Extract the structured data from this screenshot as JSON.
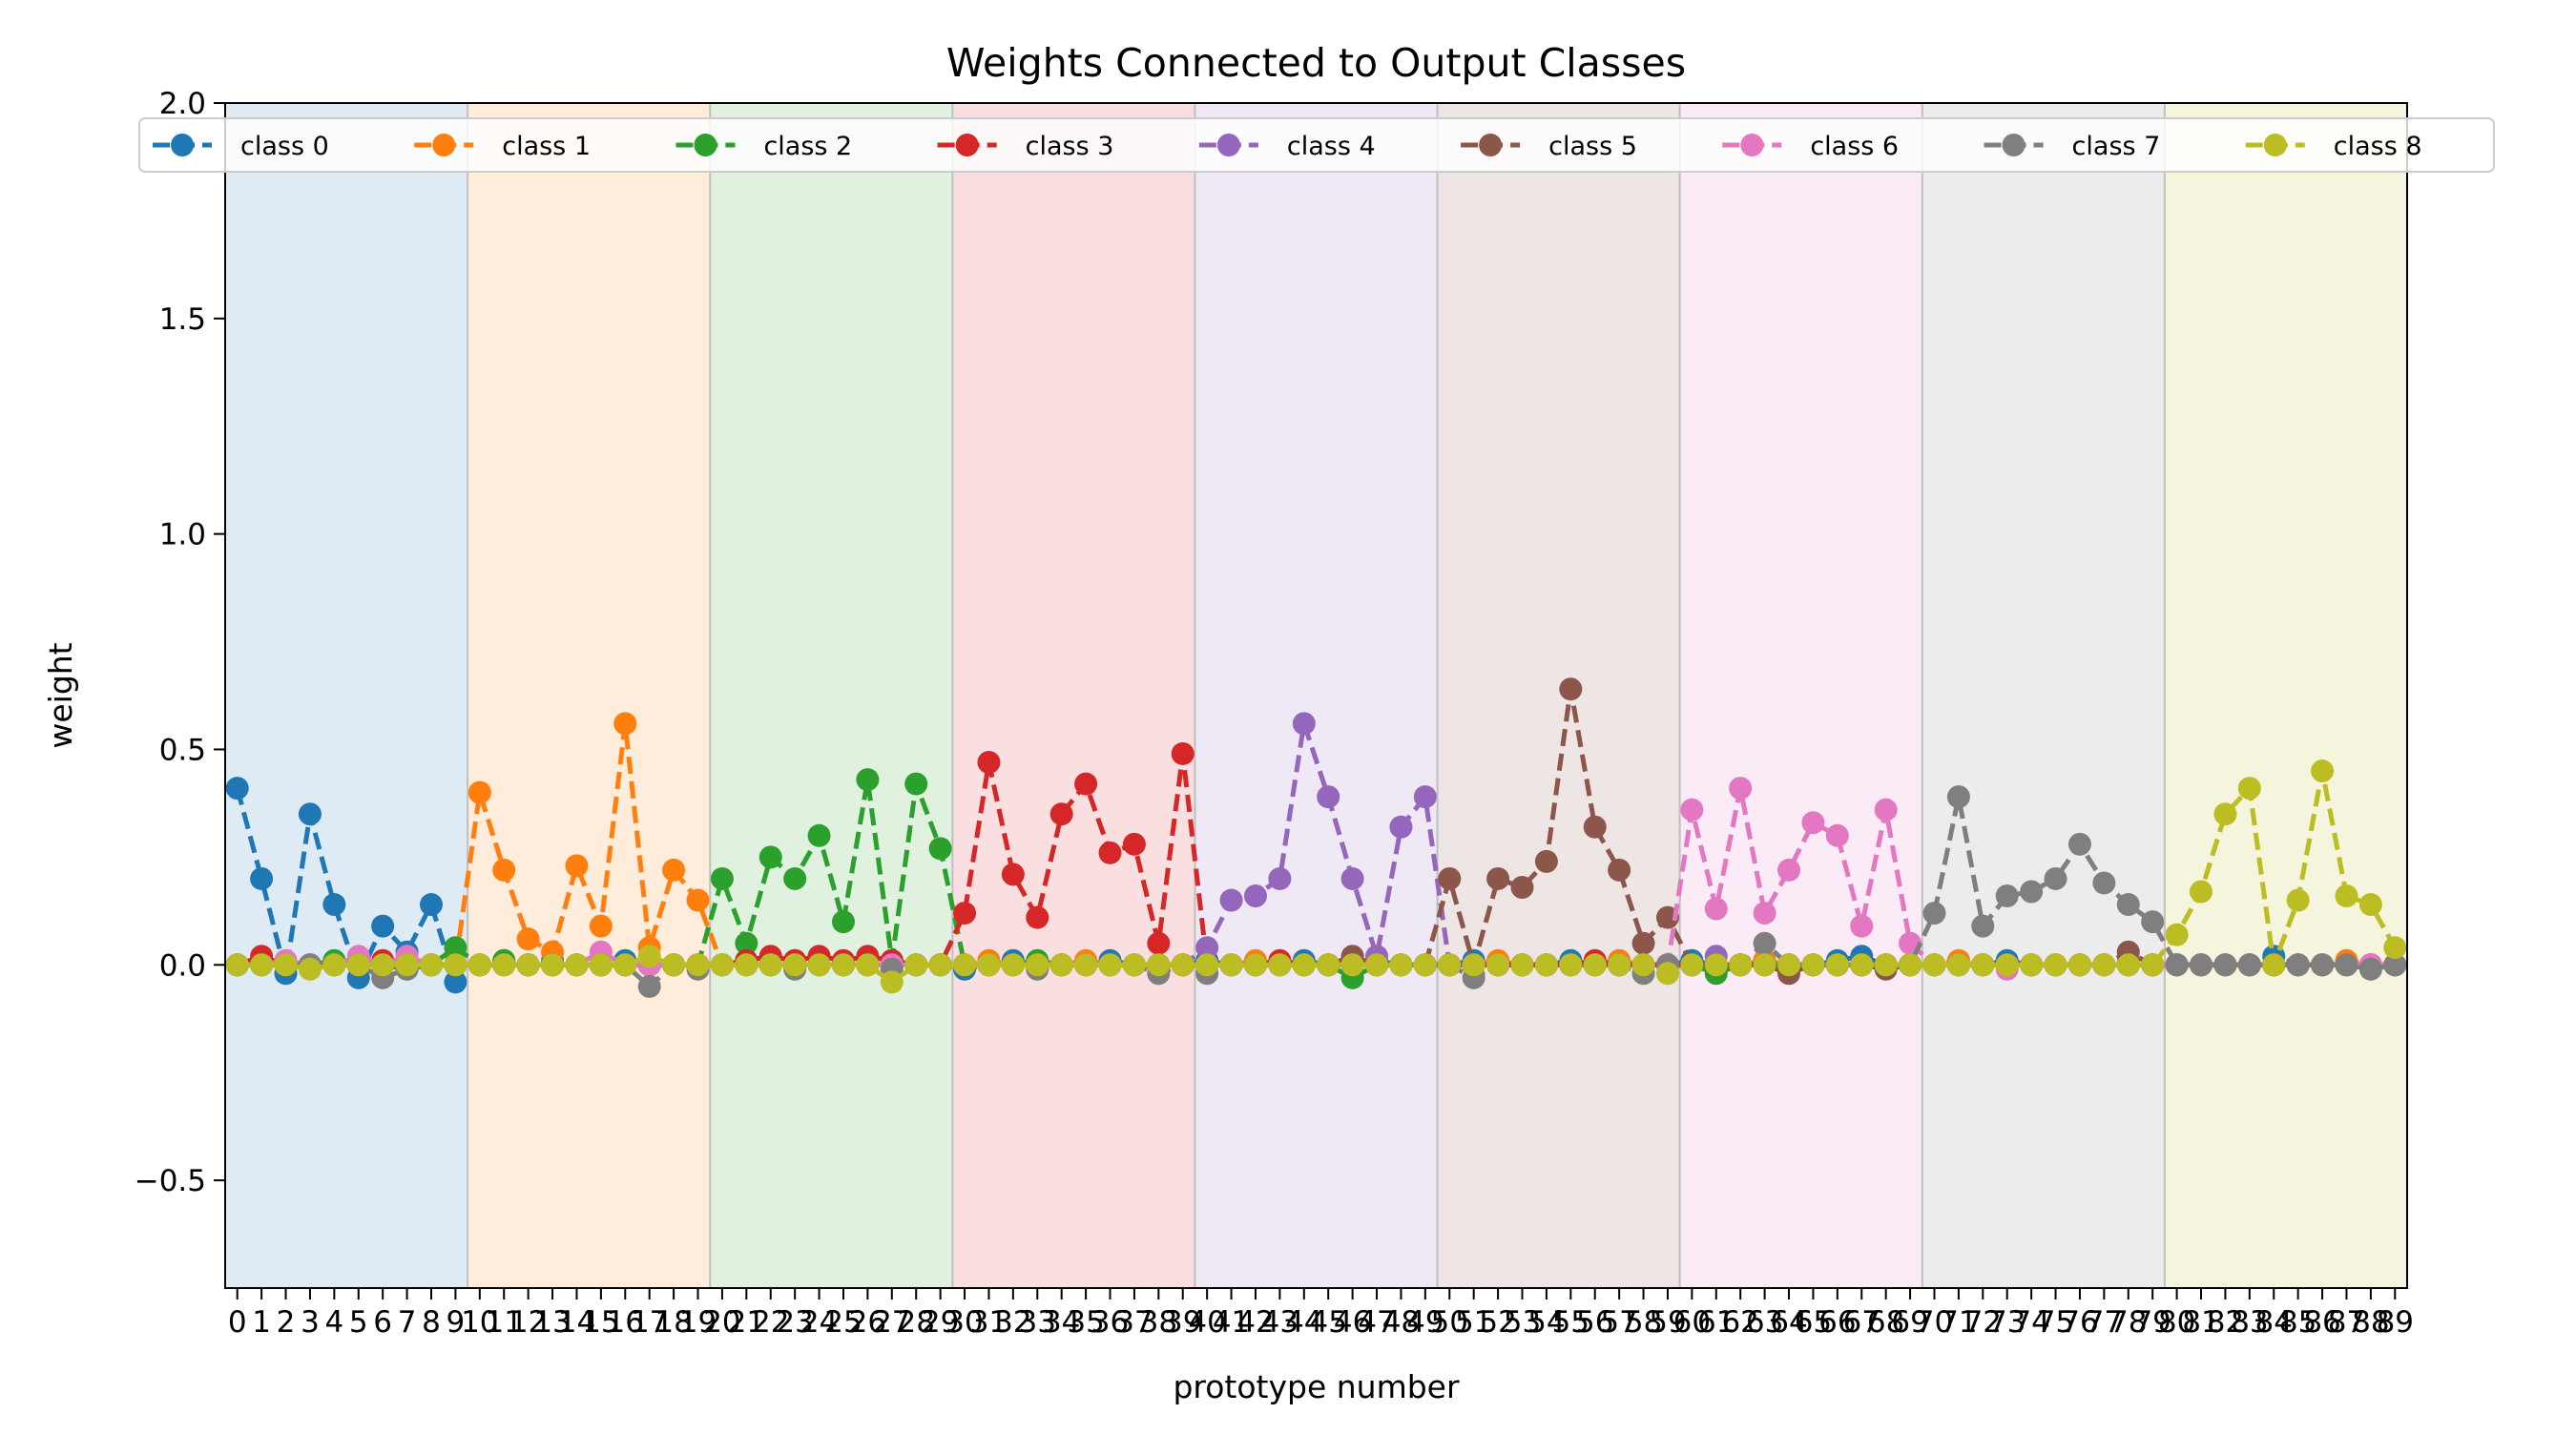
{
  "chart_data": {
    "type": "line",
    "title": "Weights Connected to Output Classes",
    "xlabel": "prototype number",
    "ylabel": "weight",
    "xlim": [
      -0.5,
      89.5
    ],
    "ylim": [
      -0.75,
      2.0
    ],
    "yticks": [
      -0.5,
      0.0,
      0.5,
      1.0,
      1.5,
      2.0
    ],
    "ytick_labels": [
      "−0.5",
      "0.0",
      "0.5",
      "1.0",
      "1.5",
      "2.0"
    ],
    "x": [
      0,
      1,
      2,
      3,
      4,
      5,
      6,
      7,
      8,
      9,
      10,
      11,
      12,
      13,
      14,
      15,
      16,
      17,
      18,
      19,
      20,
      21,
      22,
      23,
      24,
      25,
      26,
      27,
      28,
      29,
      30,
      31,
      32,
      33,
      34,
      35,
      36,
      37,
      38,
      39,
      40,
      41,
      42,
      43,
      44,
      45,
      46,
      47,
      48,
      49,
      50,
      51,
      52,
      53,
      54,
      55,
      56,
      57,
      58,
      59,
      60,
      61,
      62,
      63,
      64,
      65,
      66,
      67,
      68,
      69,
      70,
      71,
      72,
      73,
      74,
      75,
      76,
      77,
      78,
      79,
      80,
      81,
      82,
      83,
      84,
      85,
      86,
      87,
      88,
      89
    ],
    "xtick_labels": [
      "0",
      "1",
      "2",
      "3",
      "4",
      "5",
      "6",
      "7",
      "8",
      "9",
      "10",
      "11",
      "12",
      "13",
      "14",
      "15",
      "16",
      "17",
      "18",
      "19",
      "20",
      "21",
      "22",
      "23",
      "24",
      "25",
      "26",
      "27",
      "28",
      "29",
      "30",
      "31",
      "32",
      "33",
      "34",
      "35",
      "36",
      "37",
      "38",
      "39",
      "40",
      "41",
      "42",
      "43",
      "44",
      "45",
      "46",
      "47",
      "48",
      "49",
      "50",
      "51",
      "52",
      "53",
      "54",
      "55",
      "56",
      "57",
      "58",
      "59",
      "60",
      "61",
      "62",
      "63",
      "64",
      "65",
      "66",
      "67",
      "68",
      "69",
      "70",
      "71",
      "72",
      "73",
      "74",
      "75",
      "76",
      "77",
      "78",
      "79",
      "80",
      "81",
      "82",
      "83",
      "84",
      "85",
      "86",
      "87",
      "88",
      "89"
    ],
    "class_bands": [
      {
        "class": "class 0",
        "x_range": [
          -0.5,
          9.5
        ]
      },
      {
        "class": "class 1",
        "x_range": [
          9.5,
          19.5
        ]
      },
      {
        "class": "class 2",
        "x_range": [
          19.5,
          29.5
        ]
      },
      {
        "class": "class 3",
        "x_range": [
          29.5,
          39.5
        ]
      },
      {
        "class": "class 4",
        "x_range": [
          39.5,
          49.5
        ]
      },
      {
        "class": "class 5",
        "x_range": [
          49.5,
          59.5
        ]
      },
      {
        "class": "class 6",
        "x_range": [
          59.5,
          69.5
        ]
      },
      {
        "class": "class 7",
        "x_range": [
          69.5,
          79.5
        ]
      },
      {
        "class": "class 8",
        "x_range": [
          79.5,
          89.5
        ]
      }
    ],
    "legend": {
      "placement": "top",
      "columns": 9
    },
    "grid": false,
    "series": [
      {
        "name": "class 0",
        "color": "#1f77b4",
        "values": [
          0.41,
          0.2,
          -0.02,
          0.35,
          0.14,
          -0.03,
          0.09,
          0.03,
          0.14,
          -0.04,
          0.0,
          0.01,
          0.0,
          0.01,
          0.0,
          0.0,
          0.01,
          0.0,
          0.0,
          0.0,
          0.0,
          0.01,
          0.0,
          0.01,
          0.0,
          0.0,
          0.01,
          0.0,
          0.0,
          0.0,
          -0.01,
          0.0,
          0.01,
          0.0,
          0.0,
          0.0,
          0.01,
          0.0,
          0.0,
          0.0,
          0.01,
          0.0,
          0.0,
          0.0,
          0.01,
          0.0,
          0.0,
          0.01,
          0.0,
          0.0,
          0.0,
          0.01,
          0.0,
          0.0,
          0.0,
          0.01,
          0.0,
          0.0,
          0.0,
          0.0,
          0.01,
          0.0,
          0.0,
          0.01,
          0.0,
          0.0,
          0.01,
          0.02,
          0.0,
          0.0,
          0.0,
          0.0,
          0.0,
          0.01,
          0.0,
          0.0,
          0.0,
          0.0,
          0.0,
          0.0,
          0.0,
          0.0,
          0.0,
          0.0,
          0.02,
          0.0,
          0.0,
          0.0,
          0.0,
          0.0
        ]
      },
      {
        "name": "class 1",
        "color": "#ff7f0e",
        "values": [
          0.0,
          0.01,
          0.0,
          0.0,
          0.0,
          0.01,
          0.0,
          0.0,
          0.0,
          0.0,
          0.4,
          0.22,
          0.06,
          0.03,
          0.23,
          0.09,
          0.56,
          0.04,
          0.22,
          0.15,
          0.0,
          0.0,
          0.01,
          0.0,
          0.0,
          0.0,
          0.01,
          0.0,
          0.0,
          0.0,
          0.0,
          0.01,
          0.0,
          0.0,
          0.0,
          0.01,
          0.0,
          0.0,
          0.0,
          0.0,
          0.0,
          0.0,
          0.01,
          0.0,
          0.0,
          0.0,
          0.01,
          0.0,
          0.0,
          0.0,
          0.0,
          0.0,
          0.01,
          0.0,
          0.0,
          0.0,
          0.0,
          0.01,
          0.0,
          0.0,
          0.0,
          0.0,
          0.0,
          0.01,
          0.0,
          0.0,
          0.0,
          0.0,
          0.0,
          0.0,
          0.0,
          0.01,
          0.0,
          0.0,
          0.0,
          0.0,
          0.0,
          0.0,
          0.01,
          0.0,
          0.0,
          0.0,
          0.0,
          0.0,
          0.0,
          0.0,
          0.0,
          0.01,
          0.0,
          0.0
        ]
      },
      {
        "name": "class 2",
        "color": "#2ca02c",
        "values": [
          0.0,
          0.0,
          0.0,
          0.0,
          0.01,
          0.0,
          0.0,
          -0.01,
          0.0,
          0.04,
          0.0,
          0.01,
          0.0,
          0.0,
          0.0,
          0.0,
          0.0,
          0.0,
          0.0,
          0.0,
          0.2,
          0.05,
          0.25,
          0.2,
          0.3,
          0.1,
          0.43,
          0.01,
          0.42,
          0.27,
          0.0,
          0.0,
          0.0,
          0.01,
          0.0,
          0.0,
          0.0,
          0.0,
          0.0,
          0.0,
          0.0,
          0.0,
          0.0,
          0.0,
          0.0,
          0.0,
          -0.03,
          0.0,
          0.0,
          0.0,
          0.0,
          0.0,
          0.0,
          0.0,
          0.0,
          0.0,
          0.0,
          0.0,
          0.0,
          0.0,
          0.0,
          -0.02,
          0.0,
          0.0,
          0.0,
          0.0,
          0.0,
          0.0,
          0.0,
          0.0,
          0.0,
          0.0,
          0.0,
          0.0,
          0.0,
          0.0,
          0.0,
          0.0,
          0.0,
          0.0,
          0.0,
          0.0,
          0.0,
          0.0,
          0.0,
          0.0,
          0.0,
          0.0,
          0.0,
          0.0
        ]
      },
      {
        "name": "class 3",
        "color": "#d62728",
        "values": [
          0.0,
          0.02,
          0.0,
          0.0,
          0.0,
          0.0,
          0.01,
          0.0,
          0.0,
          0.0,
          0.0,
          0.0,
          0.0,
          0.0,
          0.0,
          0.0,
          0.0,
          0.0,
          0.0,
          0.0,
          0.0,
          0.01,
          0.02,
          0.01,
          0.02,
          0.01,
          0.02,
          0.01,
          0.0,
          0.0,
          0.12,
          0.47,
          0.21,
          0.11,
          0.35,
          0.42,
          0.26,
          0.28,
          0.05,
          0.49,
          0.0,
          0.0,
          0.0,
          0.01,
          0.0,
          0.0,
          0.0,
          0.0,
          0.0,
          0.0,
          0.0,
          0.0,
          0.0,
          0.0,
          0.0,
          0.0,
          0.01,
          0.0,
          0.0,
          0.0,
          0.0,
          0.0,
          0.0,
          0.0,
          0.0,
          0.0,
          0.0,
          0.0,
          0.0,
          0.0,
          0.0,
          0.0,
          0.0,
          0.0,
          0.0,
          0.0,
          0.0,
          0.0,
          0.0,
          0.0,
          0.0,
          0.0,
          0.0,
          0.0,
          0.0,
          0.0,
          0.0,
          0.0,
          0.0,
          0.0
        ]
      },
      {
        "name": "class 4",
        "color": "#9467bd",
        "values": [
          0.0,
          0.0,
          0.0,
          0.0,
          0.0,
          0.0,
          0.0,
          0.0,
          0.0,
          0.0,
          0.0,
          0.0,
          0.0,
          0.0,
          0.0,
          0.0,
          0.0,
          0.0,
          0.0,
          0.0,
          0.0,
          0.0,
          0.0,
          0.0,
          0.0,
          0.0,
          0.0,
          0.0,
          0.0,
          0.0,
          0.0,
          0.0,
          0.0,
          0.0,
          0.0,
          0.0,
          0.0,
          0.0,
          0.0,
          0.0,
          0.04,
          0.15,
          0.16,
          0.2,
          0.56,
          0.39,
          0.2,
          0.02,
          0.32,
          0.39,
          0.0,
          0.0,
          0.0,
          0.0,
          0.0,
          0.0,
          0.0,
          0.0,
          0.0,
          0.0,
          0.0,
          0.02,
          0.0,
          0.0,
          0.0,
          0.0,
          0.0,
          0.0,
          0.0,
          0.0,
          0.0,
          0.0,
          0.0,
          0.0,
          0.0,
          0.0,
          0.0,
          0.0,
          0.0,
          0.0,
          0.0,
          0.0,
          0.0,
          0.0,
          0.0,
          0.0,
          0.0,
          0.0,
          0.0,
          0.0
        ]
      },
      {
        "name": "class 5",
        "color": "#8c564b",
        "values": [
          0.0,
          0.0,
          0.0,
          0.0,
          0.0,
          0.0,
          0.0,
          0.0,
          0.0,
          0.0,
          0.0,
          0.0,
          0.0,
          0.0,
          0.0,
          0.0,
          0.0,
          0.0,
          0.0,
          0.0,
          0.0,
          0.0,
          0.0,
          0.0,
          0.0,
          0.0,
          0.0,
          0.0,
          0.0,
          0.0,
          0.0,
          0.0,
          0.0,
          0.0,
          0.0,
          0.0,
          0.0,
          0.0,
          0.0,
          0.0,
          0.0,
          0.0,
          0.0,
          0.0,
          0.0,
          0.0,
          0.02,
          0.0,
          0.0,
          0.0,
          0.2,
          0.0,
          0.2,
          0.18,
          0.24,
          0.64,
          0.32,
          0.22,
          0.05,
          0.11,
          0.0,
          0.0,
          0.0,
          0.0,
          -0.02,
          0.0,
          0.0,
          0.0,
          -0.01,
          0.0,
          0.0,
          0.0,
          0.0,
          0.0,
          0.0,
          0.0,
          0.0,
          0.0,
          0.03,
          0.0,
          0.0,
          0.0,
          0.0,
          0.0,
          0.0,
          0.0,
          0.0,
          0.0,
          0.0,
          0.0
        ]
      },
      {
        "name": "class 6",
        "color": "#e377c2",
        "values": [
          0.0,
          0.0,
          0.01,
          0.0,
          0.0,
          0.02,
          0.0,
          0.02,
          0.0,
          0.0,
          0.0,
          0.0,
          0.0,
          0.0,
          0.0,
          0.03,
          0.0,
          0.0,
          0.0,
          0.0,
          0.0,
          0.0,
          0.0,
          0.0,
          0.0,
          0.0,
          0.0,
          0.0,
          0.0,
          0.0,
          0.0,
          0.0,
          0.0,
          0.0,
          0.0,
          0.0,
          0.0,
          0.0,
          0.0,
          0.0,
          0.0,
          0.0,
          0.0,
          0.0,
          0.0,
          0.0,
          0.0,
          0.0,
          0.0,
          0.0,
          0.0,
          0.0,
          0.0,
          0.0,
          0.0,
          0.0,
          0.0,
          0.0,
          0.0,
          0.0,
          0.36,
          0.13,
          0.41,
          0.12,
          0.22,
          0.33,
          0.3,
          0.09,
          0.36,
          0.05,
          0.0,
          0.0,
          0.0,
          -0.01,
          0.0,
          0.0,
          0.0,
          0.0,
          0.0,
          0.0,
          0.0,
          0.0,
          0.0,
          0.0,
          0.0,
          0.0,
          0.0,
          0.0,
          0.0,
          0.0
        ]
      },
      {
        "name": "class 7",
        "color": "#7f7f7f",
        "values": [
          0.0,
          0.0,
          0.0,
          0.0,
          0.0,
          0.0,
          -0.03,
          -0.01,
          0.0,
          0.0,
          0.0,
          0.0,
          0.0,
          0.0,
          0.0,
          0.0,
          0.0,
          -0.05,
          0.0,
          -0.01,
          0.0,
          0.0,
          0.0,
          -0.01,
          0.0,
          0.0,
          0.0,
          -0.01,
          0.0,
          0.0,
          0.0,
          0.0,
          0.0,
          -0.01,
          0.0,
          0.0,
          0.0,
          0.0,
          -0.02,
          0.0,
          -0.02,
          0.0,
          0.0,
          0.0,
          0.0,
          0.0,
          0.0,
          0.0,
          0.0,
          0.0,
          0.0,
          -0.03,
          0.0,
          0.0,
          0.0,
          0.0,
          0.0,
          0.0,
          -0.02,
          0.0,
          0.0,
          0.0,
          0.0,
          0.05,
          0.0,
          0.0,
          0.0,
          0.0,
          0.0,
          0.0,
          0.12,
          0.39,
          0.09,
          0.16,
          0.17,
          0.2,
          0.28,
          0.19,
          0.14,
          0.1,
          0.0,
          0.0,
          0.0,
          0.0,
          0.0,
          0.0,
          0.0,
          0.0,
          -0.01,
          0.0
        ]
      },
      {
        "name": "class 8",
        "color": "#bcbd22",
        "values": [
          0.0,
          0.0,
          0.0,
          -0.01,
          0.0,
          0.0,
          0.0,
          0.0,
          0.0,
          0.0,
          0.0,
          0.0,
          0.0,
          0.0,
          0.0,
          0.0,
          0.0,
          0.02,
          0.0,
          0.0,
          0.0,
          0.0,
          0.0,
          0.0,
          0.0,
          0.0,
          0.0,
          -0.04,
          0.0,
          0.0,
          0.0,
          0.0,
          0.0,
          0.0,
          0.0,
          0.0,
          0.0,
          0.0,
          0.0,
          0.0,
          0.0,
          0.0,
          0.0,
          0.0,
          0.0,
          0.0,
          0.0,
          0.0,
          0.0,
          0.0,
          0.0,
          0.0,
          0.0,
          0.0,
          0.0,
          0.0,
          0.0,
          0.0,
          0.0,
          -0.02,
          0.0,
          0.0,
          0.0,
          0.0,
          0.0,
          0.0,
          0.0,
          0.0,
          0.0,
          0.0,
          0.0,
          0.0,
          0.0,
          0.0,
          0.0,
          0.0,
          0.0,
          0.0,
          0.0,
          0.0,
          0.07,
          0.17,
          0.35,
          0.41,
          0.0,
          0.15,
          0.45,
          0.16,
          0.14,
          0.04
        ]
      }
    ]
  }
}
